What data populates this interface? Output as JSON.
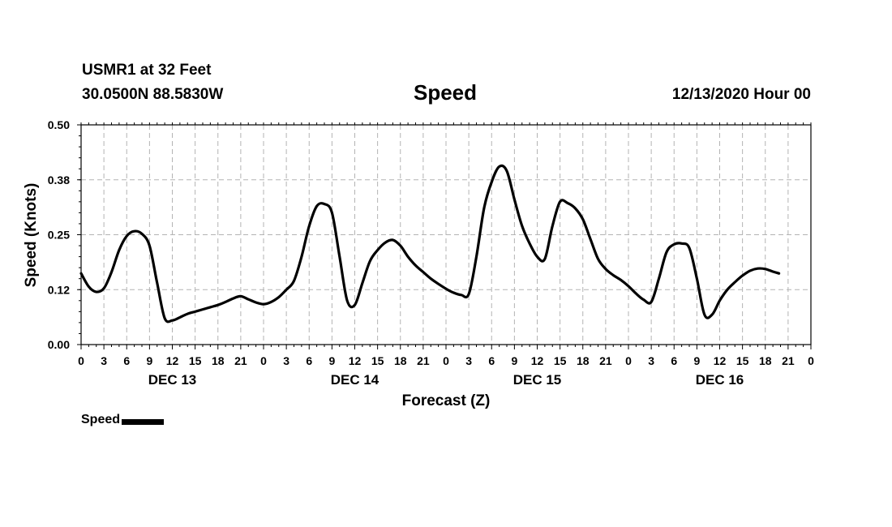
{
  "header": {
    "station": "USMR1 at 32 Feet",
    "coords": "30.0500N 88.5830W",
    "run": "12/13/2020 Hour 00"
  },
  "legend": {
    "label": "Speed",
    "color": "#000000"
  },
  "chart_data": {
    "type": "line",
    "title": "Speed",
    "xlabel": "Forecast (Z)",
    "ylabel": "Speed (Knots)",
    "ylim": [
      0,
      0.5
    ],
    "xlim_hours": [
      0,
      96
    ],
    "y_ticks": [
      "0.00",
      "0.12",
      "0.25",
      "0.38",
      "0.50"
    ],
    "y_tick_values": [
      0,
      0.125,
      0.25,
      0.375,
      0.5
    ],
    "x_ticks": [
      "0",
      "3",
      "6",
      "9",
      "12",
      "15",
      "18",
      "21",
      "0",
      "3",
      "6",
      "9",
      "12",
      "15",
      "18",
      "21",
      "0",
      "3",
      "6",
      "9",
      "12",
      "15",
      "18",
      "21",
      "0",
      "3",
      "6",
      "9",
      "12",
      "15",
      "18",
      "21",
      "0"
    ],
    "day_labels": [
      {
        "label": "DEC 13",
        "hour": 12
      },
      {
        "label": "DEC 14",
        "hour": 36
      },
      {
        "label": "DEC 15",
        "hour": 60
      },
      {
        "label": "DEC 16",
        "hour": 84
      }
    ],
    "grid": true,
    "series": [
      {
        "name": "Speed",
        "points": [
          [
            0,
            0.162
          ],
          [
            1,
            0.132
          ],
          [
            2,
            0.12
          ],
          [
            3,
            0.128
          ],
          [
            4,
            0.165
          ],
          [
            5,
            0.215
          ],
          [
            6,
            0.247
          ],
          [
            7,
            0.258
          ],
          [
            8,
            0.252
          ],
          [
            9,
            0.225
          ],
          [
            10,
            0.14
          ],
          [
            11,
            0.06
          ],
          [
            12,
            0.055
          ],
          [
            13,
            0.062
          ],
          [
            14,
            0.07
          ],
          [
            15,
            0.075
          ],
          [
            16,
            0.08
          ],
          [
            17,
            0.085
          ],
          [
            18,
            0.09
          ],
          [
            19,
            0.097
          ],
          [
            20,
            0.105
          ],
          [
            21,
            0.11
          ],
          [
            22,
            0.103
          ],
          [
            23,
            0.096
          ],
          [
            24,
            0.092
          ],
          [
            25,
            0.097
          ],
          [
            26,
            0.108
          ],
          [
            27,
            0.125
          ],
          [
            28,
            0.145
          ],
          [
            29,
            0.2
          ],
          [
            30,
            0.27
          ],
          [
            31,
            0.315
          ],
          [
            32,
            0.32
          ],
          [
            33,
            0.3
          ],
          [
            34,
            0.2
          ],
          [
            35,
            0.1
          ],
          [
            36,
            0.09
          ],
          [
            37,
            0.14
          ],
          [
            38,
            0.19
          ],
          [
            39,
            0.215
          ],
          [
            40,
            0.232
          ],
          [
            41,
            0.238
          ],
          [
            42,
            0.225
          ],
          [
            43,
            0.2
          ],
          [
            44,
            0.18
          ],
          [
            45,
            0.165
          ],
          [
            46,
            0.15
          ],
          [
            47,
            0.138
          ],
          [
            48,
            0.127
          ],
          [
            49,
            0.118
          ],
          [
            50,
            0.113
          ],
          [
            51,
            0.115
          ],
          [
            52,
            0.2
          ],
          [
            53,
            0.31
          ],
          [
            54,
            0.37
          ],
          [
            55,
            0.405
          ],
          [
            56,
            0.395
          ],
          [
            57,
            0.33
          ],
          [
            58,
            0.27
          ],
          [
            59,
            0.23
          ],
          [
            60,
            0.2
          ],
          [
            61,
            0.195
          ],
          [
            62,
            0.27
          ],
          [
            63,
            0.325
          ],
          [
            64,
            0.322
          ],
          [
            65,
            0.31
          ],
          [
            66,
            0.285
          ],
          [
            67,
            0.24
          ],
          [
            68,
            0.195
          ],
          [
            69,
            0.172
          ],
          [
            70,
            0.158
          ],
          [
            71,
            0.147
          ],
          [
            72,
            0.133
          ],
          [
            73,
            0.116
          ],
          [
            74,
            0.102
          ],
          [
            75,
            0.097
          ],
          [
            76,
            0.15
          ],
          [
            77,
            0.21
          ],
          [
            78,
            0.228
          ],
          [
            79,
            0.23
          ],
          [
            80,
            0.22
          ],
          [
            81,
            0.15
          ],
          [
            82,
            0.068
          ],
          [
            83,
            0.068
          ],
          [
            84,
            0.1
          ],
          [
            85,
            0.125
          ],
          [
            86,
            0.142
          ],
          [
            87,
            0.157
          ],
          [
            88,
            0.168
          ],
          [
            89,
            0.173
          ],
          [
            90,
            0.172
          ],
          [
            91,
            0.166
          ],
          [
            91.8,
            0.162
          ]
        ]
      }
    ]
  }
}
